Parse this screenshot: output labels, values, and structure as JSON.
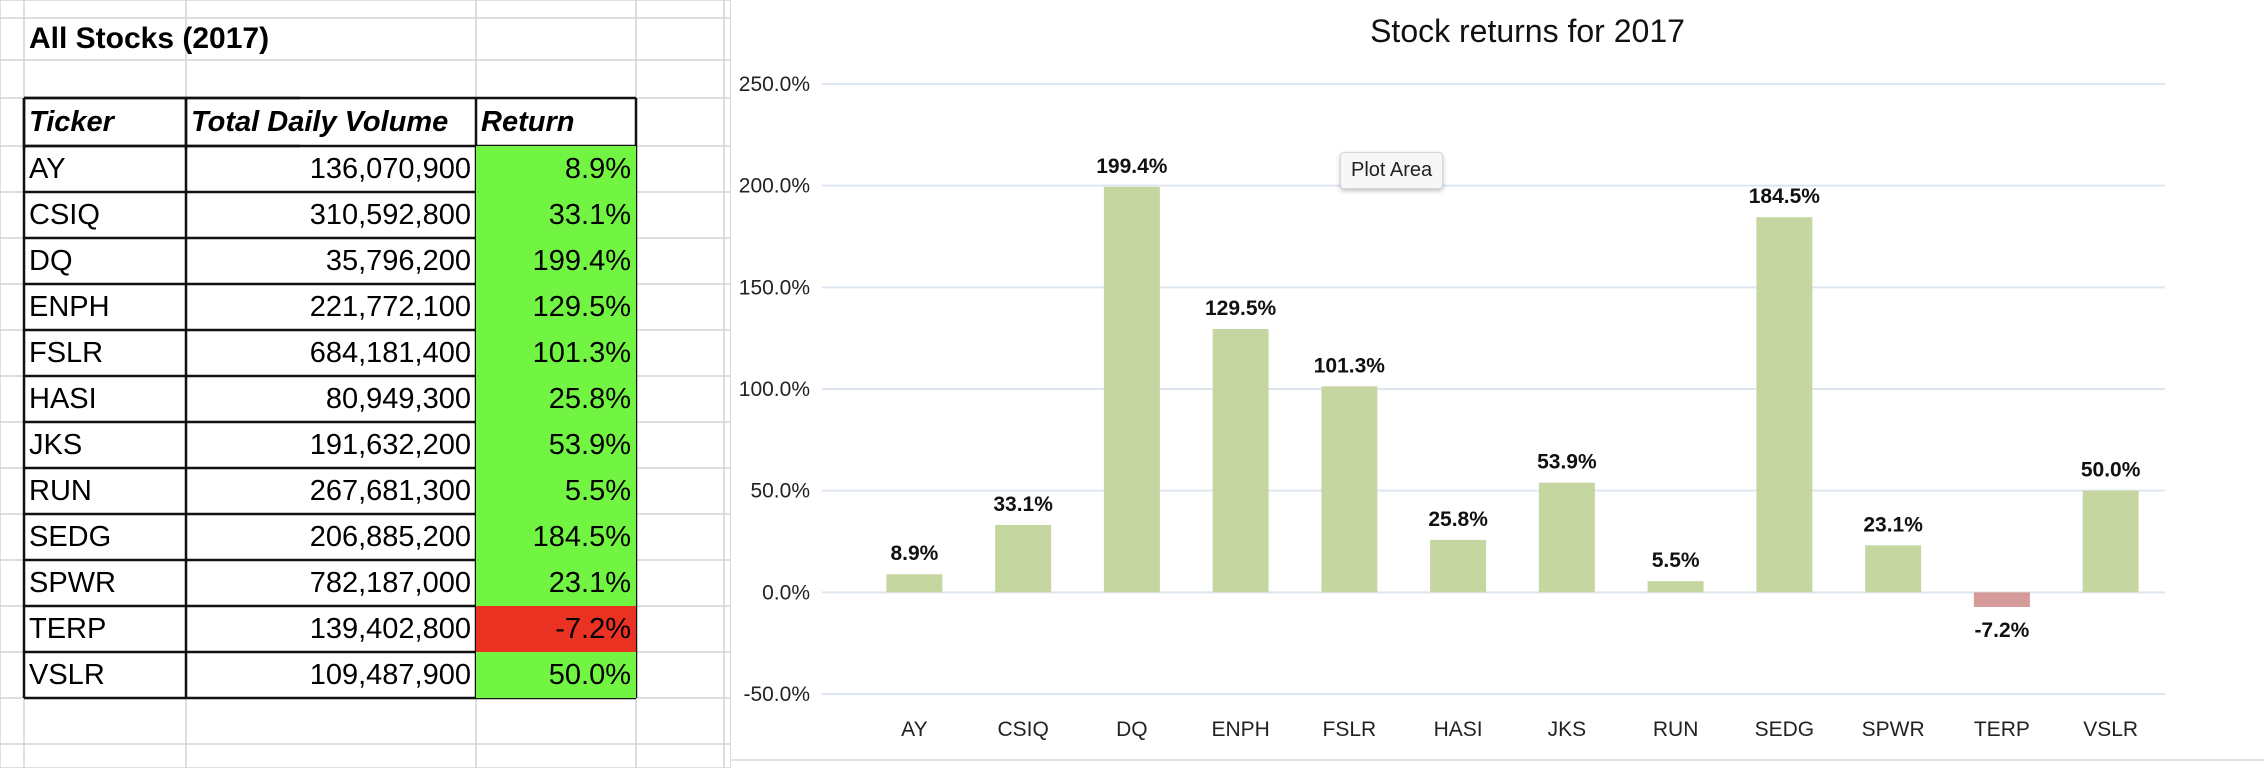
{
  "sheet": {
    "title": "All Stocks (2017)",
    "headers": {
      "ticker": "Ticker",
      "volume": "Total Daily Volume",
      "return": "Return"
    },
    "rows": [
      {
        "ticker": "AY",
        "volume": "136,070,900",
        "return": "8.9%",
        "positive": true
      },
      {
        "ticker": "CSIQ",
        "volume": "310,592,800",
        "return": "33.1%",
        "positive": true
      },
      {
        "ticker": "DQ",
        "volume": "35,796,200",
        "return": "199.4%",
        "positive": true
      },
      {
        "ticker": "ENPH",
        "volume": "221,772,100",
        "return": "129.5%",
        "positive": true
      },
      {
        "ticker": "FSLR",
        "volume": "684,181,400",
        "return": "101.3%",
        "positive": true
      },
      {
        "ticker": "HASI",
        "volume": "80,949,300",
        "return": "25.8%",
        "positive": true
      },
      {
        "ticker": "JKS",
        "volume": "191,632,200",
        "return": "53.9%",
        "positive": true
      },
      {
        "ticker": "RUN",
        "volume": "267,681,300",
        "return": "5.5%",
        "positive": true
      },
      {
        "ticker": "SEDG",
        "volume": "206,885,200",
        "return": "184.5%",
        "positive": true
      },
      {
        "ticker": "SPWR",
        "volume": "782,187,000",
        "return": "23.1%",
        "positive": true
      },
      {
        "ticker": "TERP",
        "volume": "139,402,800",
        "return": "-7.2%",
        "positive": false
      },
      {
        "ticker": "VSLR",
        "volume": "109,487,900",
        "return": "50.0%",
        "positive": true
      }
    ],
    "colors": {
      "positive": "#72f542",
      "negative": "#ea3223"
    }
  },
  "tooltip": {
    "label": "Plot Area"
  },
  "chart_data": {
    "type": "bar",
    "title": "Stock returns for 2017",
    "xlabel": "",
    "ylabel": "",
    "categories": [
      "AY",
      "CSIQ",
      "DQ",
      "ENPH",
      "FSLR",
      "HASI",
      "JKS",
      "RUN",
      "SEDG",
      "SPWR",
      "TERP",
      "VSLR"
    ],
    "values": [
      8.9,
      33.1,
      199.4,
      129.5,
      101.3,
      25.8,
      53.9,
      5.5,
      184.5,
      23.1,
      -7.2,
      50.0
    ],
    "data_labels": [
      "8.9%",
      "33.1%",
      "199.4%",
      "129.5%",
      "101.3%",
      "25.8%",
      "53.9%",
      "5.5%",
      "184.5%",
      "23.1%",
      "-7.2%",
      "50.0%"
    ],
    "ylim": [
      -50,
      250
    ],
    "yticks": [
      -50,
      0,
      50,
      100,
      150,
      200,
      250
    ],
    "ytick_labels": [
      "-50.0%",
      "0.0%",
      "50.0%",
      "100.0%",
      "150.0%",
      "200.0%",
      "250.0%"
    ],
    "grid": true,
    "legend": "none",
    "colors": {
      "positive": "#c6d6a0",
      "negative": "#d59a9a",
      "grid": "#dde6f0"
    }
  }
}
